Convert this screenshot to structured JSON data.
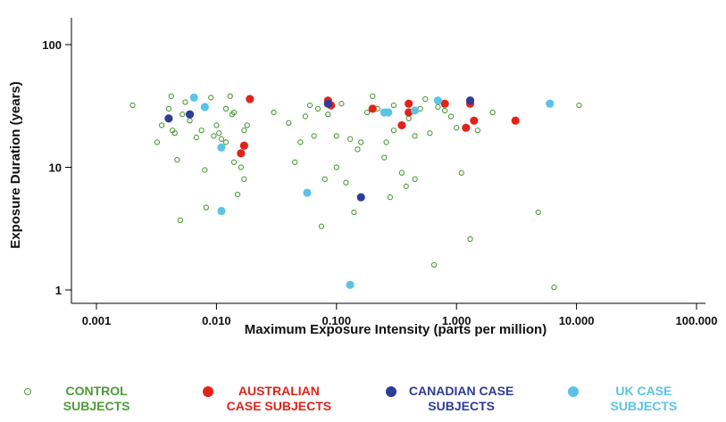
{
  "chart_data": {
    "type": "scatter",
    "x_label": "Maximum Exposure Intensity (parts per million)",
    "y_label": "Exposure Duration (years)",
    "log_x": true,
    "log_y": true,
    "xlim": [
      0.001,
      100
    ],
    "ylim": [
      1,
      100
    ],
    "xticks": [
      {
        "value": 0.001,
        "label": "0.001"
      },
      {
        "value": 0.01,
        "label": "0.010"
      },
      {
        "value": 0.1,
        "label": "0.100"
      },
      {
        "value": 1,
        "label": "1.000"
      },
      {
        "value": 10,
        "label": "10.000"
      },
      {
        "value": 100,
        "label": "100.000"
      }
    ],
    "yticks": [
      1,
      10,
      100
    ],
    "series": [
      {
        "name": "CONTROL SUBJECTS",
        "color": "#4f9a3a",
        "marker": "open",
        "x": [
          0.002,
          0.0032,
          0.0035,
          0.004,
          0.0042,
          0.0043,
          0.0045,
          0.0047,
          0.005,
          0.0052,
          0.0055,
          0.006,
          0.0068,
          0.0075,
          0.008,
          0.0082,
          0.009,
          0.0095,
          0.01,
          0.0105,
          0.011,
          0.012,
          0.012,
          0.013,
          0.0135,
          0.014,
          0.014,
          0.015,
          0.016,
          0.017,
          0.017,
          0.018,
          0.03,
          0.04,
          0.045,
          0.05,
          0.055,
          0.06,
          0.065,
          0.07,
          0.075,
          0.08,
          0.085,
          0.1,
          0.1,
          0.11,
          0.12,
          0.13,
          0.14,
          0.15,
          0.16,
          0.18,
          0.2,
          0.22,
          0.25,
          0.26,
          0.28,
          0.3,
          0.3,
          0.35,
          0.38,
          0.4,
          0.45,
          0.45,
          0.5,
          0.55,
          0.6,
          0.65,
          0.7,
          0.8,
          0.9,
          1.0,
          1.1,
          1.3,
          1.5,
          2,
          4.8,
          6.5,
          10.5
        ],
        "values": [
          32,
          16,
          22,
          30,
          38,
          20,
          19,
          11.5,
          3.7,
          27,
          34,
          24,
          17.5,
          20,
          9.5,
          4.7,
          37,
          18,
          22,
          19,
          17,
          16,
          30,
          38,
          27,
          11,
          28,
          6,
          10,
          8,
          20,
          22,
          28,
          23,
          11,
          16,
          26,
          32,
          18,
          30,
          3.3,
          8,
          27,
          18,
          10,
          33,
          7.5,
          17,
          4.3,
          14,
          16,
          28,
          38,
          30,
          12,
          16,
          5.7,
          20,
          32,
          9,
          7,
          25,
          8,
          18,
          30,
          36,
          19,
          1.6,
          31,
          29,
          26,
          21,
          9,
          2.6,
          20,
          28,
          4.3,
          1.05,
          32
        ]
      },
      {
        "name": "AUSTRALIAN CASE SUBJECTS",
        "color": "#e2231a",
        "marker": "filled",
        "x": [
          0.019,
          0.016,
          0.017,
          0.085,
          0.09,
          0.2,
          0.4,
          0.4,
          0.35,
          0.8,
          1.3,
          1.3,
          1.2,
          1.4,
          3.1
        ],
        "values": [
          36,
          13,
          15,
          35,
          32,
          30,
          33,
          28,
          22,
          33,
          35,
          33,
          21,
          24,
          24
        ]
      },
      {
        "name": "CANADIAN CASE SUBJECTS",
        "color": "#2e3c96",
        "marker": "filled",
        "x": [
          0.004,
          0.006,
          0.085,
          0.16,
          1.3
        ],
        "values": [
          25,
          27,
          33,
          5.7,
          35
        ]
      },
      {
        "name": "UK CASE SUBJECTS",
        "color": "#5bc3e6",
        "marker": "filled",
        "x": [
          0.0065,
          0.008,
          0.011,
          0.011,
          0.057,
          0.13,
          0.25,
          0.27,
          0.45,
          0.7,
          6
        ],
        "values": [
          37,
          31,
          14.5,
          4.4,
          6.2,
          1.1,
          28,
          28,
          29,
          35,
          33
        ]
      }
    ]
  }
}
